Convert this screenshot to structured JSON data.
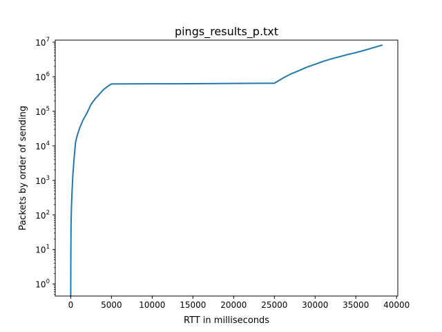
{
  "chart_data": {
    "type": "line",
    "title": "pings_results_p.txt",
    "xlabel": "RTT in milliseconds",
    "ylabel": "Packets by order of sending",
    "xlim": [
      -1900,
      40150
    ],
    "ylim": [
      0.45,
      11500000
    ],
    "yscale": "log",
    "grid": false,
    "legend": "none",
    "line_color": "#1f77b4",
    "x_ticks": [
      0,
      5000,
      10000,
      15000,
      20000,
      25000,
      30000,
      35000,
      40000
    ],
    "x_tick_labels": [
      "0",
      "5000",
      "10000",
      "15000",
      "20000",
      "25000",
      "30000",
      "35000",
      "40000"
    ],
    "y_ticks": [
      1,
      10,
      100,
      1000,
      10000,
      100000,
      1000000,
      10000000
    ],
    "y_tick_labels": [
      {
        "base": "10",
        "exp": "0"
      },
      {
        "base": "10",
        "exp": "1"
      },
      {
        "base": "10",
        "exp": "2"
      },
      {
        "base": "10",
        "exp": "3"
      },
      {
        "base": "10",
        "exp": "4"
      },
      {
        "base": "10",
        "exp": "5"
      },
      {
        "base": "10",
        "exp": "6"
      },
      {
        "base": "10",
        "exp": "7"
      }
    ],
    "series": [
      {
        "x": [
          0,
          5,
          10,
          20,
          40,
          80,
          150,
          250,
          400,
          600,
          800,
          1100,
          1500,
          2000,
          2500,
          3000,
          3500,
          4000,
          4500,
          5000,
          10000,
          15000,
          20000,
          25000,
          26000,
          27000,
          28000,
          29000,
          30000,
          31000,
          32000,
          33000,
          34000,
          35000,
          36000,
          37000,
          38200
        ],
        "y": [
          0.45,
          1,
          3,
          10,
          50,
          150,
          400,
          1300,
          4000,
          13000,
          20000,
          33000,
          55000,
          90000,
          160000,
          230000,
          310000,
          420000,
          520000,
          620000,
          625000,
          630000,
          640000,
          650000,
          900000,
          1200000,
          1500000,
          1900000,
          2300000,
          2800000,
          3300000,
          3800000,
          4400000,
          5000000,
          5800000,
          6800000,
          8200000
        ]
      }
    ]
  }
}
